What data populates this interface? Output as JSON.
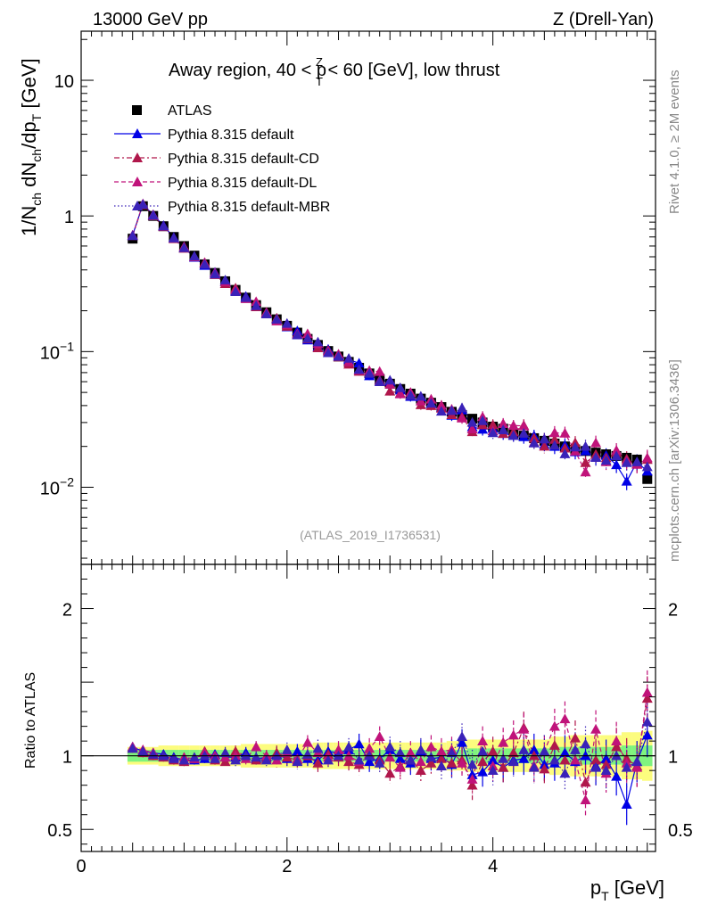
{
  "header": {
    "left": "13000 GeV pp",
    "right": "Z (Drell-Yan)"
  },
  "side_labels": {
    "rivet": "Rivet 4.1.0, ≥ 2M events",
    "mcplots": "mcplots.cern.ch [arXiv:1306.3436]"
  },
  "plot_title": {
    "pre": "Away region, 40 < p",
    "sup": "Z",
    "sub": "T",
    "post": " < 60 [GeV], low thrust"
  },
  "reference_label": "(ATLAS_2019_I1736531)",
  "axis": {
    "y_main": {
      "pre": "1/N",
      "s1": "ch",
      "mid1": " dN",
      "s2": "ch",
      "mid2": "/dp",
      "s3": "T",
      "post": " [GeV]"
    },
    "y_ratio": "Ratio to ATLAS",
    "x": {
      "pre": "p",
      "sub": "T",
      "post": " [GeV]"
    }
  },
  "ticks": {
    "main_y": [
      {
        "value": 10,
        "base": "10",
        "exp": ""
      },
      {
        "value": 1,
        "base": "1",
        "exp": ""
      },
      {
        "value": 0.1,
        "base": "10",
        "exp": "−1"
      },
      {
        "value": 0.01,
        "base": "10",
        "exp": "−2"
      }
    ],
    "ratio_y": [
      "2",
      "1",
      "0.5"
    ],
    "x": [
      "0",
      "2",
      "4"
    ]
  },
  "colors": {
    "data": "#000000",
    "default": "#0000e6",
    "cd": "#b0174b",
    "dl": "#c0137a",
    "mbr": "#3a22b8",
    "band_inner": "#7ff37f",
    "band_outer": "#fcfc7e"
  },
  "chart_data": {
    "type": "scatter",
    "title": "Away region, 40 < pT^Z < 60 [GeV], low thrust",
    "xlabel": "pT [GeV]",
    "ylabel": "1/Nch dNch/dpT [GeV]",
    "ratio_ylabel": "Ratio to ATLAS",
    "xlim": [
      0,
      5.58
    ],
    "ylim": [
      0.0027,
      23
    ],
    "ratio_ylim": [
      0.35,
      2.3
    ],
    "yscale": "log",
    "legend_position": "top-left",
    "x": [
      0.5,
      0.6,
      0.7,
      0.8,
      0.9,
      1.0,
      1.1,
      1.2,
      1.3,
      1.4,
      1.5,
      1.6,
      1.7,
      1.8,
      1.9,
      2.0,
      2.1,
      2.2,
      2.3,
      2.4,
      2.5,
      2.6,
      2.7,
      2.8,
      2.9,
      3.0,
      3.1,
      3.2,
      3.3,
      3.4,
      3.5,
      3.6,
      3.7,
      3.8,
      3.9,
      4.0,
      4.1,
      4.2,
      4.3,
      4.4,
      4.5,
      4.6,
      4.7,
      4.8,
      4.9,
      5.0,
      5.1,
      5.2,
      5.3,
      5.4,
      5.5
    ],
    "series": [
      {
        "name": "ATLAS",
        "marker": "square",
        "values": [
          0.68,
          1.18,
          1.0,
          0.84,
          0.7,
          0.6,
          0.51,
          0.44,
          0.38,
          0.33,
          0.285,
          0.25,
          0.22,
          0.195,
          0.173,
          0.155,
          0.138,
          0.124,
          0.112,
          0.101,
          0.092,
          0.084,
          0.076,
          0.069,
          0.063,
          0.058,
          0.053,
          0.049,
          0.045,
          0.042,
          0.039,
          0.036,
          0.034,
          0.032,
          0.03,
          0.028,
          0.027,
          0.025,
          0.024,
          0.023,
          0.022,
          0.021,
          0.02,
          0.019,
          0.0185,
          0.018,
          0.0175,
          0.017,
          0.0165,
          0.016,
          0.0115
        ],
        "ratio_band_inner": [
          0.04,
          0.04,
          0.04,
          0.04,
          0.04,
          0.04,
          0.04,
          0.04,
          0.04,
          0.04,
          0.04,
          0.04,
          0.04,
          0.04,
          0.04,
          0.04,
          0.04,
          0.04,
          0.04,
          0.04,
          0.04,
          0.04,
          0.04,
          0.04,
          0.04,
          0.04,
          0.04,
          0.04,
          0.04,
          0.04,
          0.04,
          0.04,
          0.04,
          0.05,
          0.05,
          0.05,
          0.05,
          0.05,
          0.05,
          0.05,
          0.05,
          0.06,
          0.06,
          0.06,
          0.06,
          0.06,
          0.06,
          0.06,
          0.07,
          0.07,
          0.07
        ],
        "ratio_band_outer": [
          0.02,
          0.02,
          0.02,
          0.03,
          0.03,
          0.03,
          0.03,
          0.03,
          0.03,
          0.03,
          0.03,
          0.04,
          0.04,
          0.04,
          0.04,
          0.04,
          0.04,
          0.04,
          0.05,
          0.05,
          0.05,
          0.05,
          0.05,
          0.05,
          0.05,
          0.05,
          0.05,
          0.05,
          0.05,
          0.05,
          0.05,
          0.06,
          0.06,
          0.06,
          0.06,
          0.06,
          0.06,
          0.06,
          0.06,
          0.06,
          0.06,
          0.07,
          0.07,
          0.08,
          0.08,
          0.08,
          0.08,
          0.08,
          0.09,
          0.09,
          0.1
        ]
      },
      {
        "name": "Pythia 8.315 default",
        "marker": "triangle",
        "line": "solid",
        "ratio": [
          1.06,
          1.03,
          1.02,
          1.01,
          0.99,
          0.97,
          0.97,
          0.98,
          1.01,
          0.99,
          0.99,
          1.02,
          0.98,
          0.99,
          1.01,
          0.98,
          1.03,
          0.98,
          0.97,
          1.03,
          1.02,
          1.04,
          1.08,
          0.96,
          0.98,
          1.04,
          0.98,
          0.95,
          1.03,
          0.98,
          0.99,
          0.94,
          1.09,
          0.87,
          0.89,
          0.97,
          0.92,
          0.97,
          0.98,
          1.04,
          0.94,
          0.95,
          1.02,
          0.96,
          1.0,
          0.93,
          0.98,
          0.86,
          0.67,
          0.96,
          1.14
        ],
        "ratio_err": [
          0.03,
          0.03,
          0.03,
          0.03,
          0.03,
          0.03,
          0.03,
          0.03,
          0.03,
          0.04,
          0.04,
          0.04,
          0.04,
          0.04,
          0.05,
          0.05,
          0.05,
          0.05,
          0.06,
          0.06,
          0.06,
          0.06,
          0.07,
          0.07,
          0.07,
          0.07,
          0.08,
          0.08,
          0.08,
          0.08,
          0.09,
          0.09,
          0.09,
          0.1,
          0.1,
          0.1,
          0.1,
          0.1,
          0.11,
          0.11,
          0.11,
          0.12,
          0.12,
          0.12,
          0.12,
          0.13,
          0.13,
          0.13,
          0.14,
          0.14,
          0.15
        ]
      },
      {
        "name": "Pythia 8.315 default-CD",
        "marker": "triangle",
        "line": "dash-dot",
        "ratio": [
          1.05,
          1.02,
          1.0,
          0.99,
          0.97,
          0.96,
          0.98,
          1.03,
          0.97,
          0.96,
          1.03,
          1.0,
          0.97,
          0.98,
          1.02,
          0.99,
          0.97,
          1.0,
          0.95,
          1.01,
          0.99,
          0.96,
          0.94,
          1.01,
          0.97,
          0.88,
          0.93,
          0.97,
          0.9,
          0.95,
          0.98,
          0.95,
          0.97,
          0.8,
          0.96,
          1.03,
          0.92,
          1.02,
          1.19,
          1.0,
          0.91,
          1.07,
          0.97,
          1.12,
          0.82,
          0.97,
          0.94,
          1.06,
          0.98,
          0.93,
          1.39
        ],
        "ratio_err": [
          0.03,
          0.03,
          0.03,
          0.03,
          0.03,
          0.03,
          0.03,
          0.03,
          0.03,
          0.04,
          0.04,
          0.04,
          0.04,
          0.04,
          0.05,
          0.05,
          0.05,
          0.05,
          0.06,
          0.06,
          0.06,
          0.06,
          0.07,
          0.07,
          0.07,
          0.07,
          0.08,
          0.08,
          0.08,
          0.08,
          0.09,
          0.09,
          0.09,
          0.1,
          0.1,
          0.1,
          0.1,
          0.1,
          0.11,
          0.11,
          0.11,
          0.12,
          0.12,
          0.12,
          0.12,
          0.13,
          0.13,
          0.13,
          0.14,
          0.14,
          0.15
        ]
      },
      {
        "name": "Pythia 8.315 default-DL",
        "marker": "triangle",
        "line": "dashed",
        "ratio": [
          1.06,
          1.04,
          1.02,
          1.0,
          0.98,
          0.99,
          0.98,
          1.02,
          1.0,
          0.99,
          1.0,
          0.98,
          1.06,
          1.0,
          0.97,
          1.02,
          0.98,
          1.09,
          1.02,
          0.99,
          1.04,
          1.0,
          0.96,
          1.05,
          1.13,
          0.99,
          0.92,
          1.02,
          0.96,
          1.06,
          1.03,
          1.04,
          0.95,
          0.84,
          1.1,
          0.93,
          1.09,
          1.14,
          1.18,
          0.93,
          1.03,
          1.2,
          1.25,
          0.97,
          0.7,
          1.18,
          0.88,
          1.1,
          0.95,
          0.92,
          1.43
        ],
        "ratio_err": [
          0.03,
          0.03,
          0.03,
          0.03,
          0.03,
          0.03,
          0.03,
          0.03,
          0.03,
          0.04,
          0.04,
          0.04,
          0.04,
          0.04,
          0.05,
          0.05,
          0.05,
          0.05,
          0.06,
          0.06,
          0.06,
          0.06,
          0.07,
          0.07,
          0.07,
          0.07,
          0.08,
          0.08,
          0.08,
          0.08,
          0.09,
          0.09,
          0.09,
          0.1,
          0.1,
          0.1,
          0.1,
          0.1,
          0.11,
          0.11,
          0.11,
          0.12,
          0.12,
          0.12,
          0.12,
          0.13,
          0.13,
          0.13,
          0.14,
          0.14,
          0.15
        ]
      },
      {
        "name": "Pythia 8.315 default-MBR",
        "marker": "triangle",
        "line": "dotted",
        "ratio": [
          1.05,
          1.03,
          1.01,
          1.0,
          0.98,
          0.97,
          0.99,
          1.0,
          0.98,
          1.02,
          0.97,
          1.0,
          0.99,
          0.97,
          1.0,
          1.04,
          0.96,
          1.01,
          1.05,
          0.97,
          1.0,
          1.06,
          0.97,
          1.0,
          0.95,
          1.06,
          1.02,
          0.97,
          1.04,
          0.99,
          0.93,
          1.02,
          1.13,
          0.94,
          1.03,
          0.9,
          0.98,
          0.96,
          1.04,
          0.92,
          1.03,
          0.97,
          0.88,
          1.04,
          1.08,
          0.92,
          0.9,
          1.0,
          0.92,
          0.96,
          1.23
        ],
        "ratio_err": [
          0.03,
          0.03,
          0.03,
          0.03,
          0.03,
          0.03,
          0.03,
          0.03,
          0.03,
          0.04,
          0.04,
          0.04,
          0.04,
          0.04,
          0.05,
          0.05,
          0.05,
          0.05,
          0.06,
          0.06,
          0.06,
          0.06,
          0.07,
          0.07,
          0.07,
          0.07,
          0.08,
          0.08,
          0.08,
          0.08,
          0.09,
          0.09,
          0.09,
          0.1,
          0.1,
          0.1,
          0.1,
          0.1,
          0.11,
          0.11,
          0.11,
          0.12,
          0.12,
          0.12,
          0.12,
          0.13,
          0.13,
          0.13,
          0.14,
          0.14,
          0.15
        ]
      }
    ]
  }
}
